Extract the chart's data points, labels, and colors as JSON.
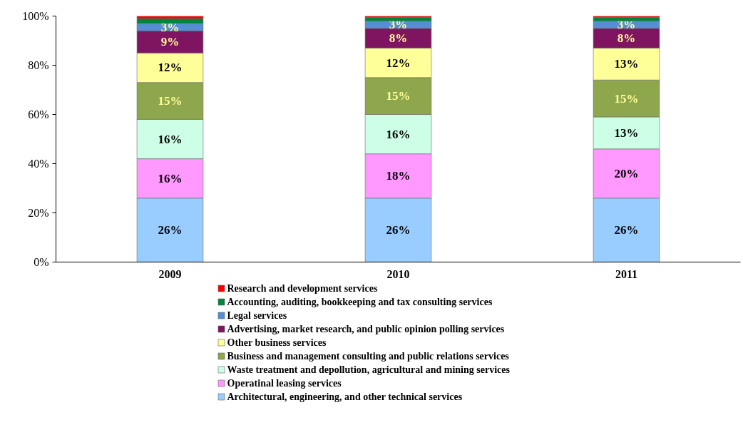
{
  "chart_data": {
    "type": "bar",
    "stacked": true,
    "categories": [
      "2009",
      "2010",
      "2011"
    ],
    "ylim": [
      0,
      100
    ],
    "yticks": [
      {
        "value": 0,
        "label": "0%"
      },
      {
        "value": 20,
        "label": "20%"
      },
      {
        "value": 40,
        "label": "40%"
      },
      {
        "value": 60,
        "label": "60%"
      },
      {
        "value": 80,
        "label": "80%"
      },
      {
        "value": 100,
        "label": "100%"
      }
    ],
    "grid": false,
    "legend": "bottom",
    "series": [
      {
        "name": "Architectural, engineering, and other technical services",
        "color": "#99ccff",
        "values": [
          26,
          26,
          26
        ],
        "value_labels": [
          "26%",
          "26%",
          "26%"
        ]
      },
      {
        "name": "Operatinal leasing services",
        "color": "#ff99ff",
        "values": [
          16,
          18,
          20
        ],
        "value_labels": [
          "16%",
          "18%",
          "20%"
        ]
      },
      {
        "name": "Waste treatment and depollution, agricultural and mining services",
        "color": "#ccffe6",
        "values": [
          16,
          16,
          13
        ],
        "value_labels": [
          "16%",
          "16%",
          "13%"
        ]
      },
      {
        "name": "Business and management consulting and public relations services",
        "color": "#8ea64c",
        "values": [
          15,
          15,
          15
        ],
        "value_labels": [
          "15%",
          "15%",
          "15%"
        ]
      },
      {
        "name": "Other business services",
        "color": "#ffff99",
        "values": [
          12,
          12,
          13
        ],
        "value_labels": [
          "12%",
          "12%",
          "13%"
        ]
      },
      {
        "name": "Advertising, market research, and public opinion polling services",
        "color": "#7f1560",
        "values": [
          9,
          8,
          8
        ],
        "value_labels": [
          "9%",
          "8%",
          "8%"
        ]
      },
      {
        "name": "Legal services",
        "color": "#558ed5",
        "values": [
          3,
          3,
          3
        ],
        "value_labels": [
          "3%",
          "3%",
          "3%"
        ]
      },
      {
        "name": "Accounting, auditing, bookkeeping and tax consulting services",
        "color": "#00853f",
        "values": [
          2,
          1.5,
          1.5
        ]
      },
      {
        "name": "Research and development services",
        "color": "#ff0000",
        "values": [
          1,
          0.5,
          0.5
        ]
      }
    ]
  }
}
